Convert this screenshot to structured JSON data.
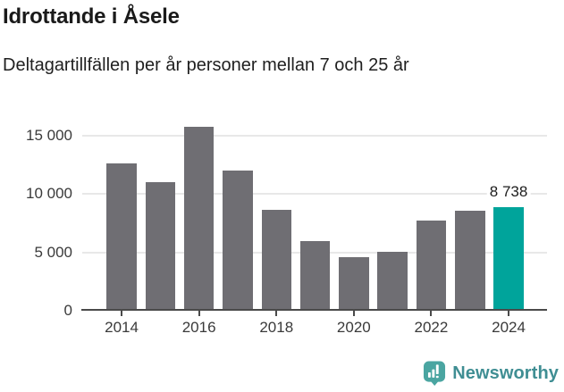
{
  "header": {
    "title": "Idrottande i Åsele",
    "subtitle": "Deltagartillfällen per år personer mellan 7 och 25 år"
  },
  "chart_data": {
    "type": "bar",
    "title": "Idrottande i Åsele",
    "subtitle": "Deltagartillfällen per år personer mellan 7 och 25 år",
    "categories": [
      "2014",
      "2015",
      "2016",
      "2017",
      "2018",
      "2019",
      "2020",
      "2021",
      "2022",
      "2023",
      "2024"
    ],
    "values": [
      12450,
      10900,
      15650,
      11900,
      8500,
      5800,
      4450,
      4900,
      7550,
      8450,
      8738
    ],
    "highlight_index": 10,
    "highlight_value_label": "8 738",
    "xlabel": "",
    "ylabel": "",
    "ylim": [
      0,
      16700
    ],
    "yticks": [
      0,
      5000,
      10000,
      15000
    ],
    "ytick_labels": [
      "0",
      "5 000",
      "10 000",
      "15 000"
    ],
    "xtick_labels": [
      "2014",
      "2016",
      "2018",
      "2020",
      "2022",
      "2024"
    ],
    "grid": true,
    "legend_position": "none",
    "colors": {
      "bar": "#6f6e73",
      "highlight": "#00a49b",
      "gridline": "#e8e8e8",
      "axis": "#4a4a4a",
      "tick_text": "#3a3a3a"
    }
  },
  "footer": {
    "brand": "Newsworthy",
    "brand_color": "#3f8e93",
    "icon_color": "#4aa5a1"
  }
}
